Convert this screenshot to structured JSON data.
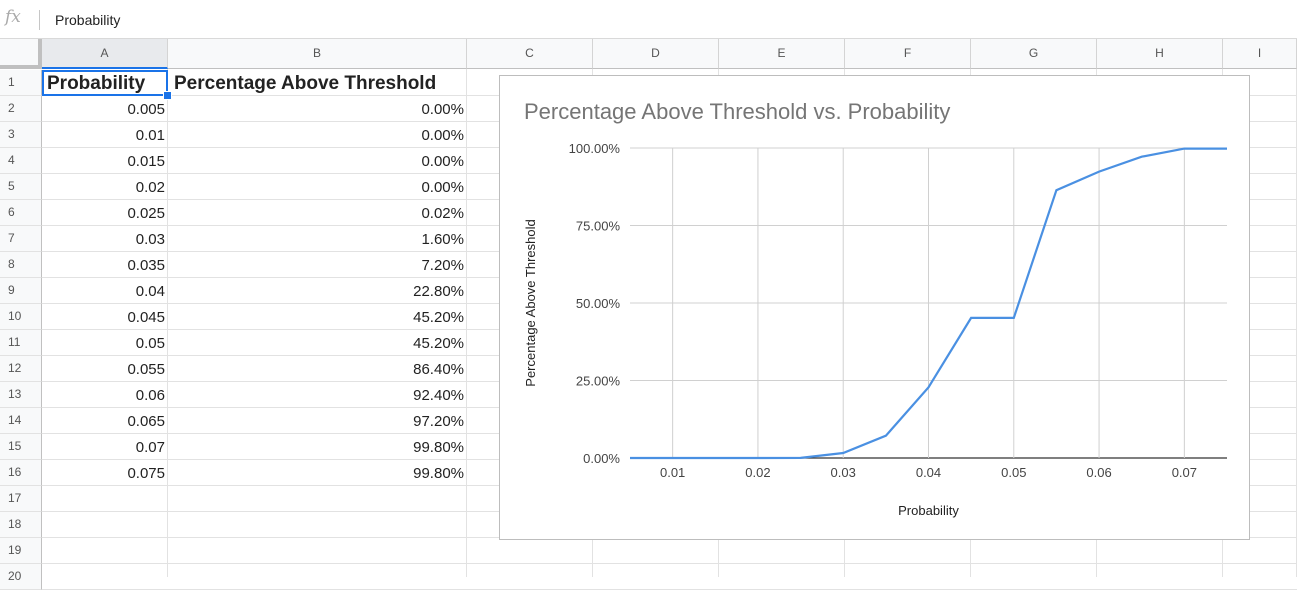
{
  "formula_bar": {
    "fx": "fx",
    "value": "Probability"
  },
  "columns": [
    "A",
    "B",
    "C",
    "D",
    "E",
    "F",
    "G",
    "H",
    "I"
  ],
  "rows": [
    "1",
    "2",
    "3",
    "4",
    "5",
    "6",
    "7",
    "8",
    "9",
    "10",
    "11",
    "12",
    "13",
    "14",
    "15",
    "16",
    "17",
    "18",
    "19",
    "20"
  ],
  "sheet": {
    "headers": [
      "Probability",
      "Percentage Above Threshold"
    ],
    "data": [
      [
        "0.005",
        "0.00%"
      ],
      [
        "0.01",
        "0.00%"
      ],
      [
        "0.015",
        "0.00%"
      ],
      [
        "0.02",
        "0.00%"
      ],
      [
        "0.025",
        "0.02%"
      ],
      [
        "0.03",
        "1.60%"
      ],
      [
        "0.035",
        "7.20%"
      ],
      [
        "0.04",
        "22.80%"
      ],
      [
        "0.045",
        "45.20%"
      ],
      [
        "0.05",
        "45.20%"
      ],
      [
        "0.055",
        "86.40%"
      ],
      [
        "0.06",
        "92.40%"
      ],
      [
        "0.065",
        "97.20%"
      ],
      [
        "0.07",
        "99.80%"
      ],
      [
        "0.075",
        "99.80%"
      ]
    ]
  },
  "chart_data": {
    "type": "line",
    "title": "Percentage Above Threshold vs. Probability",
    "xlabel": "Probability",
    "ylabel": "Percentage Above Threshold",
    "x": [
      0.005,
      0.01,
      0.015,
      0.02,
      0.025,
      0.03,
      0.035,
      0.04,
      0.045,
      0.05,
      0.055,
      0.06,
      0.065,
      0.07,
      0.075
    ],
    "series": [
      {
        "values": [
          0,
          0,
          0,
          0,
          0.02,
          1.6,
          7.2,
          22.8,
          45.2,
          45.2,
          86.4,
          92.4,
          97.2,
          99.8,
          99.8
        ]
      }
    ],
    "xlim": [
      0.005,
      0.075
    ],
    "ylim": [
      0,
      100
    ],
    "x_ticks": [
      0.01,
      0.02,
      0.03,
      0.04,
      0.05,
      0.06,
      0.07
    ],
    "x_tick_labels": [
      "0.01",
      "0.02",
      "0.03",
      "0.04",
      "0.05",
      "0.06",
      "0.07"
    ],
    "y_ticks": [
      0,
      25,
      50,
      75,
      100
    ],
    "y_tick_labels": [
      "0.00%",
      "25.00%",
      "50.00%",
      "75.00%",
      "100.00%"
    ],
    "grid": true,
    "line_color": "#4a90e2"
  }
}
